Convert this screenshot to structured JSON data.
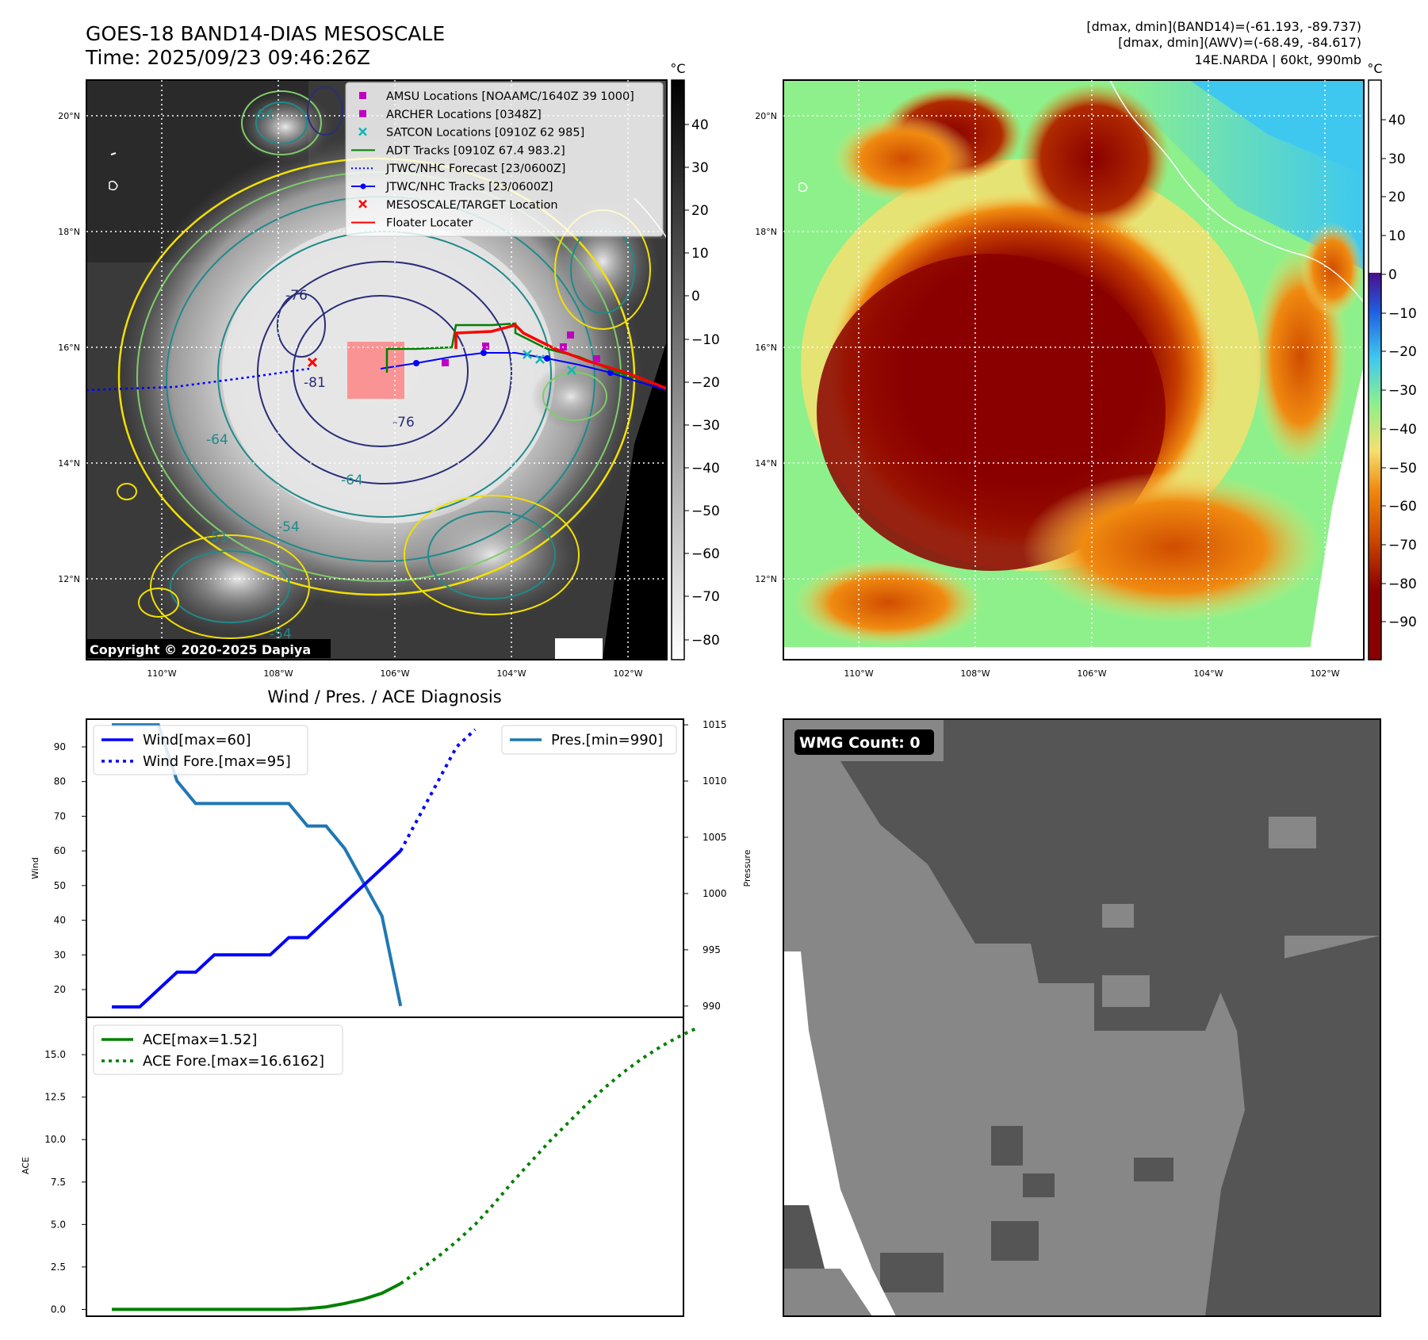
{
  "header": {
    "title_line1": "GOES-18 BAND14-DIAS MESOSCALE",
    "title_line2": "Time: 2025/09/23 09:46:26Z",
    "info_line1": "[dmax, dmin](BAND14)=(-61.193, -89.737)",
    "info_line2": "[dmax, dmin](AWV)=(-68.49, -84.617)",
    "info_line3": "14E.NARDA | 60kt, 990mb"
  },
  "maps": {
    "lat_ticks": [
      "20°N",
      "18°N",
      "16°N",
      "14°N",
      "12°N"
    ],
    "lon_ticks": [
      "110°W",
      "108°W",
      "106°W",
      "104°W",
      "102°W"
    ],
    "copyright": "Copyright © 2020-2025 Dapiya",
    "contour_labels": [
      "-76",
      "-81",
      "-76",
      "-64",
      "-64",
      "-64",
      "-54",
      "-51",
      "-54"
    ],
    "colors": {
      "ir_cold": "#f0f0f0",
      "ir_warm": "#1e1e1e",
      "contour_yellow": "#f2e000",
      "contour_lightgreen": "#7fcc6a",
      "contour_teal": "#1f8a8a",
      "contour_navy": "#2b2d7a"
    }
  },
  "legend": {
    "items": [
      {
        "label": "AMSU Locations [NOAAMC/1640Z 39 1000]",
        "marker": "square",
        "color": "#c000c0"
      },
      {
        "label": "ARCHER Locations [0348Z]",
        "marker": "square",
        "color": "#c000c0"
      },
      {
        "label": "SATCON Locations [0910Z 62 985]",
        "marker": "x",
        "color": "#12b5b5"
      },
      {
        "label": "ADT Tracks [0910Z 67.4 983.2]",
        "marker": "line",
        "color": "#008000"
      },
      {
        "label": "JTWC/NHC Forecast [23/0600Z]",
        "marker": "dotted",
        "color": "#0000ff"
      },
      {
        "label": "JTWC/NHC Tracks [23/0600Z]",
        "marker": "line-dot",
        "color": "#0000ff"
      },
      {
        "label": "MESOSCALE/TARGET Location",
        "marker": "x",
        "color": "#ff0000"
      },
      {
        "label": "Floater Locater",
        "marker": "line",
        "color": "#ff0000"
      }
    ]
  },
  "colorbar_left": {
    "unit": "°C",
    "ticks": [
      "40",
      "30",
      "20",
      "10",
      "0",
      "−10",
      "−20",
      "−30",
      "−40",
      "−50",
      "−60",
      "−70",
      "−80"
    ],
    "colors": {
      "top": "#000000",
      "bottom": "#ffffff"
    }
  },
  "colorbar_right": {
    "unit": "°C",
    "ticks": [
      "40",
      "30",
      "20",
      "10",
      "0",
      "−10",
      "−20",
      "−30",
      "−40",
      "−50",
      "−60",
      "−70",
      "−80",
      "−90"
    ],
    "colors": {
      "white": "#ffffff",
      "purple": "#4b0d8c",
      "blue": "#1f5fe0",
      "cyan": "#3ec8f0",
      "green": "#8ef08a",
      "yellow": "#f5e070",
      "orange": "#f08a10",
      "darkorange": "#d04d00",
      "darkred": "#8a0000"
    }
  },
  "diag": {
    "title": "Wind / Pres. / ACE Diagnosis",
    "wind_ylabel": "Wind",
    "pres_ylabel": "Pressure",
    "ace_ylabel": "ACE",
    "wind_ticks": [
      "20",
      "30",
      "40",
      "50",
      "60",
      "70",
      "80",
      "90"
    ],
    "pres_ticks": [
      "990",
      "995",
      "1000",
      "1005",
      "1010",
      "1015"
    ],
    "ace_ticks": [
      "0.0",
      "2.5",
      "5.0",
      "7.5",
      "10.0",
      "12.5",
      "15.0"
    ],
    "legend_wind": "Wind[max=60]",
    "legend_wind_fore": "Wind Fore.[max=95]",
    "legend_pres": "Pres.[min=990]",
    "legend_ace": "ACE[max=1.52]",
    "legend_ace_fore": "ACE Fore.[max=16.6162]"
  },
  "wmg": {
    "label": "WMG Count: 0",
    "colors": {
      "light": "#878787",
      "dark": "#555555",
      "white": "#ffffff"
    }
  },
  "chart_data": [
    {
      "type": "line",
      "title": "Wind / Pres. / ACE Diagnosis",
      "ylabel": "Wind",
      "ylim": [
        12,
        98
      ],
      "xlim": [
        0,
        40
      ],
      "series": [
        {
          "name": "Wind[max=60]",
          "style": "solid",
          "color": "#0000ff",
          "x": [
            0,
            3,
            5,
            7,
            9,
            11,
            13,
            15,
            17,
            19,
            21,
            23,
            25,
            27,
            29,
            31
          ],
          "y": [
            15,
            15,
            20,
            25,
            25,
            30,
            30,
            30,
            30,
            35,
            35,
            40,
            45,
            50,
            55,
            60
          ]
        },
        {
          "name": "Wind Fore.[max=95]",
          "style": "dotted",
          "color": "#0000ff",
          "x": [
            31,
            33,
            35,
            37,
            39
          ],
          "y": [
            60,
            70,
            80,
            90,
            95
          ]
        }
      ]
    },
    {
      "type": "line",
      "ylabel": "Pressure",
      "ylim": [
        989,
        1015.5
      ],
      "series": [
        {
          "name": "Pres.[min=990]",
          "style": "solid",
          "color": "#1f77b4",
          "x": [
            0,
            3,
            5,
            7,
            9,
            11,
            13,
            15,
            17,
            19,
            21,
            23,
            25,
            27,
            29,
            31
          ],
          "y": [
            1015,
            1015,
            1015,
            1010,
            1008,
            1008,
            1008,
            1008,
            1008,
            1008,
            1006,
            1006,
            1004,
            1001,
            998,
            990
          ]
        }
      ]
    },
    {
      "type": "line",
      "ylabel": "ACE",
      "ylim": [
        -0.4,
        17.2
      ],
      "series": [
        {
          "name": "ACE[max=1.52]",
          "style": "solid",
          "color": "#008000",
          "x": [
            0,
            3,
            6,
            9,
            11,
            13,
            15,
            17,
            19,
            21,
            23,
            25,
            27,
            29,
            31
          ],
          "y": [
            0,
            0,
            0,
            0,
            0,
            0,
            0,
            0,
            0,
            0.05,
            0.15,
            0.35,
            0.6,
            0.95,
            1.52
          ]
        },
        {
          "name": "ACE Fore.[max=16.6162]",
          "style": "dotted",
          "color": "#008000",
          "x": [
            31,
            33,
            35,
            37,
            39,
            41,
            43,
            45,
            47,
            49,
            51,
            53,
            55,
            57,
            59,
            61,
            63
          ],
          "y": [
            1.52,
            2.3,
            3.1,
            4.0,
            5.0,
            6.2,
            7.5,
            8.7,
            9.9,
            11.0,
            12.1,
            13.1,
            14.0,
            14.8,
            15.5,
            16.1,
            16.6162
          ]
        }
      ]
    }
  ]
}
